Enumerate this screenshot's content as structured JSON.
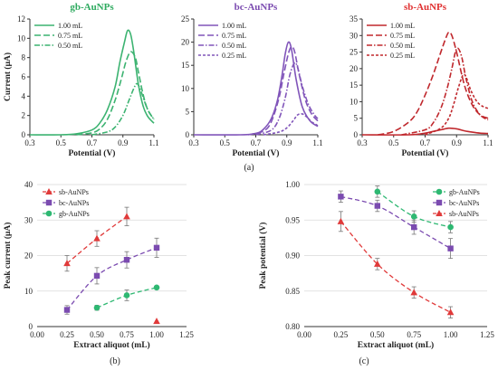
{
  "panel_labels": [
    "(a)",
    "(b)",
    "(c)"
  ],
  "chart_data": [
    {
      "type": "line",
      "title": "gb-AuNPs",
      "title_color": "#2eaa5f",
      "xlabel": "Potential (V)",
      "ylabel": "Current (μA)",
      "xlim": [
        0.3,
        1.1
      ],
      "ylim": [
        0,
        12
      ],
      "xticks": [
        0.3,
        0.5,
        0.7,
        0.9,
        1.1
      ],
      "yticks": [
        0,
        2,
        4,
        6,
        8,
        10,
        12
      ],
      "grid": false,
      "legend_position": "top-left",
      "series": [
        {
          "name": "1.00 mL",
          "color": "#3cb371",
          "dash": "solid",
          "x": [
            0.3,
            0.5,
            0.6,
            0.7,
            0.75,
            0.8,
            0.85,
            0.88,
            0.91,
            0.93,
            0.95,
            0.97,
            1.0,
            1.03,
            1.06,
            1.1
          ],
          "y": [
            0.0,
            0.0,
            0.1,
            0.5,
            1.2,
            2.6,
            5.0,
            7.5,
            9.6,
            10.8,
            10.4,
            8.6,
            5.2,
            3.0,
            1.9,
            1.2
          ]
        },
        {
          "name": "0.75 mL",
          "color": "#3cb371",
          "dash": "long",
          "x": [
            0.6,
            0.7,
            0.75,
            0.8,
            0.85,
            0.89,
            0.92,
            0.95,
            0.98,
            1.0,
            1.03,
            1.06,
            1.1
          ],
          "y": [
            0.0,
            0.2,
            0.6,
            1.6,
            3.6,
            5.8,
            7.6,
            8.6,
            8.0,
            6.5,
            4.2,
            2.6,
            1.6
          ]
        },
        {
          "name": "0.50 mL",
          "color": "#3cb371",
          "dash": "dashdot",
          "x": [
            0.7,
            0.8,
            0.85,
            0.9,
            0.94,
            0.97,
            0.99,
            1.01,
            1.03,
            1.06,
            1.1
          ],
          "y": [
            0.0,
            0.3,
            0.8,
            2.0,
            3.6,
            4.8,
            5.3,
            4.8,
            3.9,
            2.6,
            1.6
          ]
        }
      ]
    },
    {
      "type": "line",
      "title": "bc-AuNPs",
      "title_color": "#7b4bb0",
      "xlabel": "Potential (V)",
      "ylabel": "",
      "xlim": [
        0.3,
        1.1
      ],
      "ylim": [
        0,
        25
      ],
      "xticks": [
        0.3,
        0.5,
        0.7,
        0.9,
        1.1
      ],
      "yticks": [
        0,
        5,
        10,
        15,
        20,
        25
      ],
      "grid": false,
      "legend_position": "top-left",
      "series": [
        {
          "name": "1.00 mL",
          "color": "#8155ba",
          "dash": "solid",
          "x": [
            0.3,
            0.6,
            0.7,
            0.75,
            0.8,
            0.84,
            0.87,
            0.89,
            0.91,
            0.93,
            0.96,
            1.0,
            1.05,
            1.1
          ],
          "y": [
            0.0,
            0.0,
            0.3,
            1.2,
            3.5,
            7.5,
            13.0,
            17.5,
            20.0,
            18.5,
            12.0,
            6.0,
            3.0,
            1.8
          ]
        },
        {
          "name": "0.75 mL",
          "color": "#8155ba",
          "dash": "long",
          "x": [
            0.65,
            0.75,
            0.8,
            0.85,
            0.88,
            0.91,
            0.93,
            0.95,
            0.98,
            1.02,
            1.06,
            1.1
          ],
          "y": [
            0.0,
            0.8,
            2.8,
            8.0,
            13.0,
            17.5,
            19.0,
            18.0,
            13.0,
            7.5,
            4.5,
            3.0
          ]
        },
        {
          "name": "0.50 mL",
          "color": "#8155ba",
          "dash": "dashdot",
          "x": [
            0.7,
            0.8,
            0.85,
            0.89,
            0.92,
            0.95,
            0.97,
            1.0,
            1.04,
            1.08,
            1.1
          ],
          "y": [
            0.0,
            1.0,
            3.5,
            8.0,
            13.0,
            15.5,
            14.5,
            10.5,
            6.5,
            4.2,
            3.5
          ]
        },
        {
          "name": "0.25 mL",
          "color": "#8155ba",
          "dash": "short",
          "x": [
            0.75,
            0.85,
            0.9,
            0.94,
            0.97,
            1.0,
            1.03,
            1.06,
            1.1
          ],
          "y": [
            0.0,
            0.6,
            1.5,
            3.0,
            4.3,
            4.5,
            3.8,
            2.8,
            2.0
          ]
        }
      ]
    },
    {
      "type": "line",
      "title": "sb-AuNPs",
      "title_color": "#e03030",
      "xlabel": "Potential (V)",
      "ylabel": "",
      "xlim": [
        0.3,
        1.1
      ],
      "ylim": [
        0,
        35
      ],
      "xticks": [
        0.3,
        0.5,
        0.7,
        0.9,
        1.1
      ],
      "yticks": [
        0,
        5,
        10,
        15,
        20,
        25,
        30,
        35
      ],
      "grid": false,
      "legend_position": "top-left",
      "series": [
        {
          "name": "1.00 mL",
          "color": "#c0282d",
          "dash": "solid",
          "x": [
            0.3,
            0.6,
            0.7,
            0.75,
            0.8,
            0.85,
            0.9,
            0.95,
            1.0,
            1.05,
            1.1
          ],
          "y": [
            0.0,
            0.0,
            0.5,
            1.0,
            1.5,
            2.0,
            1.8,
            1.2,
            0.8,
            0.5,
            0.4
          ]
        },
        {
          "name": "0.75 mL",
          "color": "#c0282d",
          "dash": "long",
          "x": [
            0.4,
            0.5,
            0.6,
            0.65,
            0.7,
            0.75,
            0.8,
            0.83,
            0.85,
            0.87,
            0.9,
            0.95,
            1.0,
            1.05,
            1.1
          ],
          "y": [
            0.0,
            1.0,
            4.0,
            7.0,
            12.0,
            18.0,
            25.0,
            29.0,
            31.0,
            30.0,
            25.0,
            15.0,
            9.0,
            6.0,
            5.0
          ]
        },
        {
          "name": "0.50 mL",
          "color": "#c0282d",
          "dash": "dashdot",
          "x": [
            0.55,
            0.7,
            0.75,
            0.8,
            0.84,
            0.87,
            0.9,
            0.93,
            0.96,
            1.0,
            1.05,
            1.1
          ],
          "y": [
            0.0,
            1.5,
            3.5,
            8.0,
            14.0,
            20.0,
            26.0,
            24.0,
            17.0,
            10.0,
            6.0,
            4.5
          ]
        },
        {
          "name": "0.25 mL",
          "color": "#c0282d",
          "dash": "short",
          "x": [
            0.7,
            0.8,
            0.85,
            0.88,
            0.91,
            0.94,
            0.96,
            0.99,
            1.03,
            1.07,
            1.1
          ],
          "y": [
            0.0,
            2.0,
            5.0,
            9.0,
            14.0,
            18.0,
            17.5,
            13.5,
            10.0,
            8.5,
            8.0
          ]
        }
      ]
    },
    {
      "type": "scatter",
      "title": "",
      "xlabel": "Extract aliquot (mL)",
      "ylabel": "Peak current (μA)",
      "xlim": [
        0,
        1.25
      ],
      "ylim": [
        0,
        40
      ],
      "xticks": [
        "0.00",
        "0.25",
        "0.50",
        "0.75",
        "1.00",
        "1.25"
      ],
      "yticks": [
        "0",
        "10",
        "20",
        "30",
        "40"
      ],
      "grid": true,
      "legend_position": "top-left",
      "series": [
        {
          "name": "sb-AuNPs",
          "color": "#e03a3a",
          "marker": "triangle",
          "x": [
            0.25,
            0.5,
            0.75,
            1.0
          ],
          "y": [
            17.8,
            24.8,
            31.0,
            1.5
          ],
          "err": [
            2.2,
            2.2,
            2.6,
            0
          ],
          "fit_x": [
            0.25,
            0.5,
            0.75
          ],
          "fit_y": [
            17.8,
            24.8,
            31.0
          ]
        },
        {
          "name": "bc-AuNPs",
          "color": "#7b4bb0",
          "marker": "square",
          "x": [
            0.25,
            0.5,
            0.75,
            1.0
          ],
          "y": [
            4.7,
            14.3,
            18.8,
            22.2
          ],
          "err": [
            1.2,
            2.3,
            2.3,
            2.7
          ],
          "fit_x": [
            0.25,
            0.5,
            0.75,
            1.0
          ],
          "fit_y": [
            4.7,
            14.3,
            18.8,
            22.2
          ]
        },
        {
          "name": "gb-AuNPs",
          "color": "#2eb872",
          "marker": "circle",
          "x": [
            0.5,
            0.75,
            1.0
          ],
          "y": [
            5.3,
            8.8,
            11.0
          ],
          "err": [
            0.7,
            1.5,
            0.4
          ],
          "fit_x": [
            0.5,
            0.75,
            1.0
          ],
          "fit_y": [
            5.3,
            8.8,
            11.0
          ]
        }
      ]
    },
    {
      "type": "scatter",
      "title": "",
      "xlabel": "Extract aliquot (mL)",
      "ylabel": "Peak potential (V)",
      "xlim": [
        0,
        1.25
      ],
      "ylim": [
        0.8,
        1.0
      ],
      "xticks": [
        "0.00",
        "0.25",
        "0.50",
        "0.75",
        "1.00",
        "1.25"
      ],
      "yticks": [
        "0.80",
        "0.85",
        "0.90",
        "0.95",
        "1.00"
      ],
      "grid": true,
      "legend_position": "top-right",
      "series": [
        {
          "name": "gb-AuNPs",
          "color": "#2eb872",
          "marker": "circle",
          "x": [
            0.5,
            0.75,
            1.0
          ],
          "y": [
            0.99,
            0.955,
            0.94
          ],
          "err": [
            0.008,
            0.008,
            0.008
          ],
          "fit_x": [
            0.5,
            0.75,
            1.0
          ],
          "fit_y": [
            0.99,
            0.955,
            0.94
          ]
        },
        {
          "name": "bc-AuNPs",
          "color": "#7b4bb0",
          "marker": "square",
          "x": [
            0.25,
            0.5,
            0.75,
            1.0
          ],
          "y": [
            0.983,
            0.97,
            0.94,
            0.91
          ],
          "err": [
            0.008,
            0.008,
            0.01,
            0.014
          ],
          "fit_x": [
            0.25,
            0.5,
            0.75,
            1.0
          ],
          "fit_y": [
            0.983,
            0.97,
            0.94,
            0.91
          ]
        },
        {
          "name": "sb-AuNPs",
          "color": "#e03a3a",
          "marker": "triangle",
          "x": [
            0.25,
            0.5,
            0.75,
            1.0
          ],
          "y": [
            0.948,
            0.888,
            0.848,
            0.82
          ],
          "err": [
            0.014,
            0.008,
            0.008,
            0.008
          ],
          "fit_x": [
            0.25,
            0.5,
            0.75,
            1.0
          ],
          "fit_y": [
            0.948,
            0.888,
            0.848,
            0.82
          ]
        }
      ]
    }
  ]
}
